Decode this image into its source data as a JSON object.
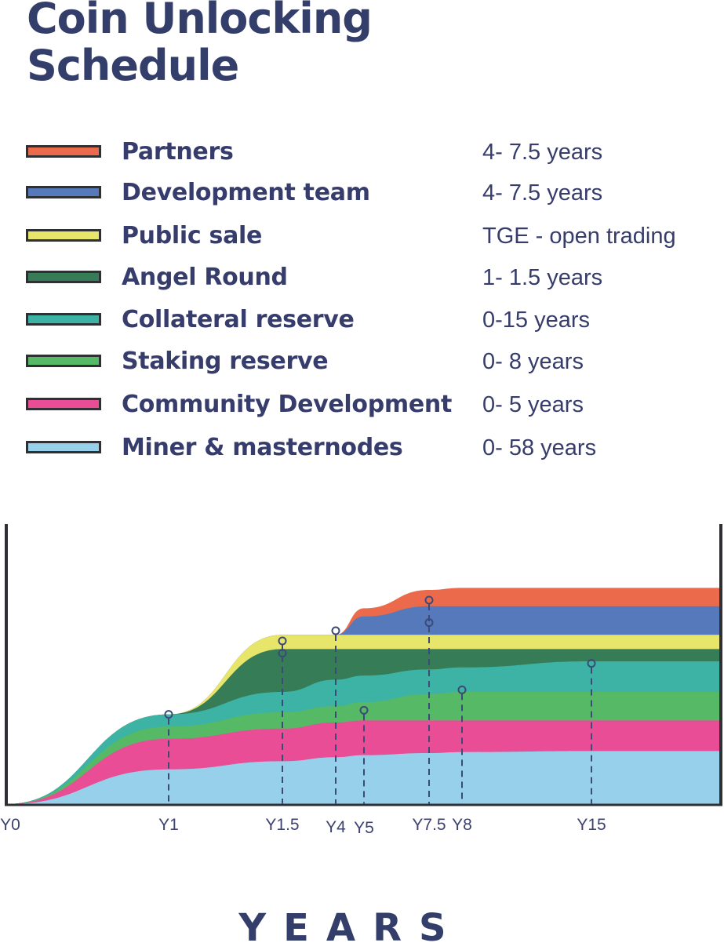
{
  "title_line1": "Coin Unlocking",
  "title_line2": "Schedule",
  "legend": [
    {
      "label": "Partners",
      "period": "4- 7.5 years",
      "color": "#ec6a4c"
    },
    {
      "label": "Development team",
      "period": "4- 7.5 years",
      "color": "#5579bb"
    },
    {
      "label": "Public sale",
      "period": "TGE - open trading",
      "color": "#e7e56a"
    },
    {
      "label": "Angel Round",
      "period": "1- 1.5 years",
      "color": "#367d57"
    },
    {
      "label": "Collateral reserve",
      "period": "0-15 years",
      "color": "#3cb3a4"
    },
    {
      "label": "Staking reserve",
      "period": "0- 8 years",
      "color": "#56b966"
    },
    {
      "label": "Community Development",
      "period": "0- 5 years",
      "color": "#e84d95"
    },
    {
      "label": "Miner & masternodes",
      "period": "0- 58 years",
      "color": "#97d0ea"
    }
  ],
  "chart_data": {
    "type": "area",
    "stacked": true,
    "xlabel": "YEARS",
    "ylabel": "",
    "x_ticks": [
      "Y0",
      "Y1",
      "Y1.5",
      "Y4",
      "Y5",
      "Y7.5",
      "Y8",
      "Y15"
    ],
    "series": [
      {
        "name": "Miner & masternodes",
        "color": "#97d0ea",
        "unlock_start": "Y0",
        "unlock_end": "Y58",
        "cumulative_top": [
          [
            0,
            0
          ],
          [
            1,
            0.17
          ],
          [
            1.5,
            0.21
          ],
          [
            4,
            0.23
          ],
          [
            5,
            0.24
          ],
          [
            7.5,
            0.25
          ],
          [
            8,
            0.255
          ],
          [
            15,
            0.26
          ],
          [
            20,
            0.26
          ]
        ]
      },
      {
        "name": "Community Development",
        "color": "#e84d95",
        "unlock_start": "Y0",
        "unlock_end": "Y5",
        "cumulative_top": [
          [
            0,
            0
          ],
          [
            1,
            0.32
          ],
          [
            1.5,
            0.37
          ],
          [
            4,
            0.4
          ],
          [
            5,
            0.41
          ],
          [
            7.5,
            0.41
          ],
          [
            8,
            0.41
          ],
          [
            15,
            0.41
          ],
          [
            20,
            0.41
          ]
        ]
      },
      {
        "name": "Staking reserve",
        "color": "#56b966",
        "unlock_start": "Y0",
        "unlock_end": "Y8",
        "cumulative_top": [
          [
            0,
            0
          ],
          [
            1,
            0.38
          ],
          [
            1.5,
            0.45
          ],
          [
            4,
            0.48
          ],
          [
            5,
            0.5
          ],
          [
            7.5,
            0.54
          ],
          [
            8,
            0.55
          ],
          [
            15,
            0.55
          ],
          [
            20,
            0.55
          ]
        ]
      },
      {
        "name": "Collateral reserve",
        "color": "#3cb3a4",
        "unlock_start": "Y0",
        "unlock_end": "Y15",
        "cumulative_top": [
          [
            0,
            0
          ],
          [
            1,
            0.44
          ],
          [
            1.5,
            0.55
          ],
          [
            4,
            0.61
          ],
          [
            5,
            0.63
          ],
          [
            7.5,
            0.66
          ],
          [
            8,
            0.67
          ],
          [
            15,
            0.7
          ],
          [
            20,
            0.7
          ]
        ]
      },
      {
        "name": "Angel Round",
        "color": "#367d57",
        "unlock_start": "Y1",
        "unlock_end": "Y1.5",
        "cumulative_top": [
          [
            0,
            0
          ],
          [
            1,
            0.44
          ],
          [
            1.5,
            0.76
          ],
          [
            4,
            0.76
          ],
          [
            5,
            0.76
          ],
          [
            7.5,
            0.76
          ],
          [
            8,
            0.76
          ],
          [
            15,
            0.76
          ],
          [
            20,
            0.76
          ]
        ]
      },
      {
        "name": "Public sale",
        "color": "#e7e56a",
        "unlock_start": "TGE",
        "unlock_end": "open trading",
        "cumulative_top": [
          [
            0,
            0
          ],
          [
            1,
            0.44
          ],
          [
            1.5,
            0.83
          ],
          [
            4,
            0.83
          ],
          [
            5,
            0.83
          ],
          [
            7.5,
            0.83
          ],
          [
            8,
            0.83
          ],
          [
            15,
            0.83
          ],
          [
            20,
            0.83
          ]
        ]
      },
      {
        "name": "Development team",
        "color": "#5579bb",
        "unlock_start": "Y4",
        "unlock_end": "Y7.5",
        "cumulative_top": [
          [
            0,
            0
          ],
          [
            1,
            0.44
          ],
          [
            1.5,
            0.83
          ],
          [
            4,
            0.83
          ],
          [
            5,
            0.92
          ],
          [
            7.5,
            0.97
          ],
          [
            8,
            0.97
          ],
          [
            15,
            0.97
          ],
          [
            20,
            0.97
          ]
        ]
      },
      {
        "name": "Partners",
        "color": "#ec6a4c",
        "unlock_start": "Y4",
        "unlock_end": "Y7.5",
        "cumulative_top": [
          [
            0,
            0
          ],
          [
            1,
            0.44
          ],
          [
            1.5,
            0.83
          ],
          [
            4,
            0.83
          ],
          [
            5,
            0.96
          ],
          [
            7.5,
            1.05
          ],
          [
            8,
            1.06
          ],
          [
            15,
            1.06
          ],
          [
            20,
            1.06
          ]
        ]
      }
    ],
    "markers": [
      {
        "x_label": "Y1",
        "series": "Collateral reserve"
      },
      {
        "x_label": "Y1.5",
        "series": "Public sale"
      },
      {
        "x_label": "Y1.5",
        "series": "Angel Round"
      },
      {
        "x_label": "Y4",
        "series": "Public sale"
      },
      {
        "x_label": "Y5",
        "series": "Community Development"
      },
      {
        "x_label": "Y7.5",
        "series": "Partners"
      },
      {
        "x_label": "Y7.5",
        "series": "Development team"
      },
      {
        "x_label": "Y8",
        "series": "Staking reserve"
      },
      {
        "x_label": "Y15",
        "series": "Collateral reserve"
      }
    ],
    "grid": false,
    "legend_position": "top"
  }
}
